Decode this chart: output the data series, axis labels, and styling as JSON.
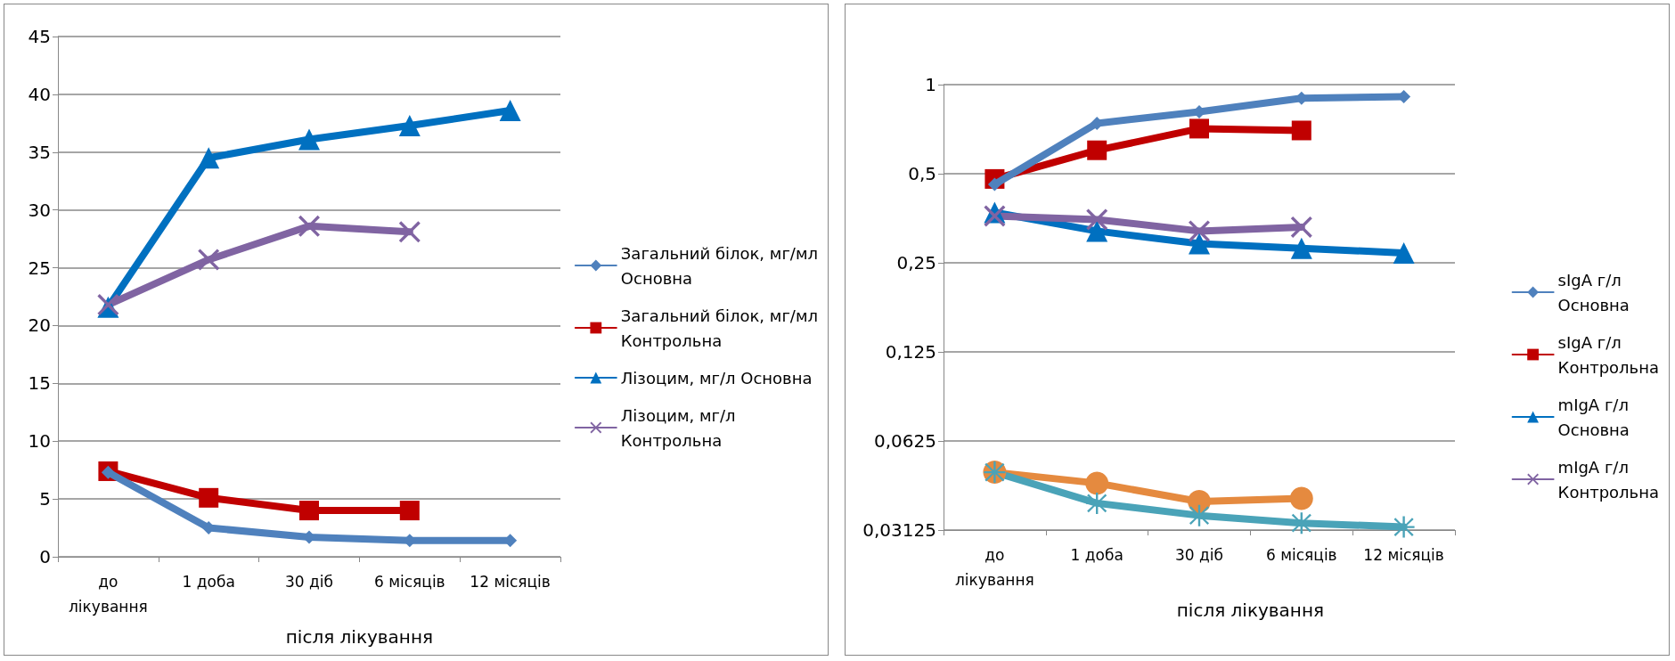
{
  "chart_data": [
    {
      "type": "line",
      "categories": [
        "до лікування",
        "1 доба",
        "30 діб",
        "6 місяців",
        "12 місяців"
      ],
      "annotations": [
        "після лікування"
      ],
      "ylim": [
        0,
        45
      ],
      "yticks": [
        0,
        5,
        10,
        15,
        20,
        25,
        30,
        35,
        40,
        45
      ],
      "grid": "y",
      "legend": "right",
      "series": [
        {
          "name": "Загальний білок, мг/мл Основна",
          "color": "#4f81bd",
          "marker": "diamond",
          "values": [
            7.3,
            2.5,
            1.7,
            1.4,
            1.4
          ]
        },
        {
          "name": "Загальний білок, мг/мл Контрольна",
          "color": "#c00000",
          "marker": "square",
          "values": [
            7.4,
            5.1,
            4.0,
            4.0,
            null
          ]
        },
        {
          "name": "Лізоцим, мг/л Основна",
          "color": "#0070c0",
          "marker": "triangle",
          "values": [
            21.6,
            34.5,
            36.1,
            37.3,
            38.6
          ]
        },
        {
          "name": "Лізоцим, мг/л Контрольна",
          "color": "#8064a2",
          "marker": "cross",
          "values": [
            21.8,
            25.7,
            28.6,
            28.1,
            null
          ]
        }
      ]
    },
    {
      "type": "line",
      "categories": [
        "до лікування",
        "1 доба",
        "30 діб",
        "6 місяців",
        "12 місяців"
      ],
      "annotations": [
        "після лікування"
      ],
      "log": "y",
      "ylim": [
        0.03125,
        1
      ],
      "yticks": [
        {
          "value": 0.03125,
          "label": "0,03125"
        },
        {
          "value": 0.0625,
          "label": "0,0625"
        },
        {
          "value": 0.125,
          "label": "0,125"
        },
        {
          "value": 0.25,
          "label": "0,25"
        },
        {
          "value": 0.5,
          "label": "0,5"
        },
        1
      ],
      "grid": "y",
      "legend": "right",
      "series": [
        {
          "name": "sIgA г/л Основна",
          "color": "#4f81bd",
          "marker": "diamond",
          "values": [
            0.46,
            0.74,
            0.81,
            0.9,
            0.91
          ]
        },
        {
          "name": "sIgA г/л Контрольна",
          "color": "#c00000",
          "marker": "square",
          "values": [
            0.48,
            0.6,
            0.71,
            0.7,
            null
          ]
        },
        {
          "name": "mIgA г/л Основна",
          "color": "#0070c0",
          "marker": "triangle",
          "values": [
            0.37,
            0.32,
            0.29,
            0.28,
            0.27
          ]
        },
        {
          "name": "mIgA г/л Контрольна",
          "color": "#8064a2",
          "marker": "cross",
          "values": [
            0.36,
            0.35,
            0.32,
            0.33,
            null
          ]
        },
        {
          "color": "#e58a3f",
          "marker": "circle",
          "values": [
            0.049,
            0.045,
            0.039,
            0.04,
            null
          ]
        },
        {
          "color": "#4aa3b8",
          "marker": "star",
          "values": [
            0.049,
            0.0385,
            0.035,
            0.033,
            0.032
          ]
        }
      ]
    }
  ]
}
